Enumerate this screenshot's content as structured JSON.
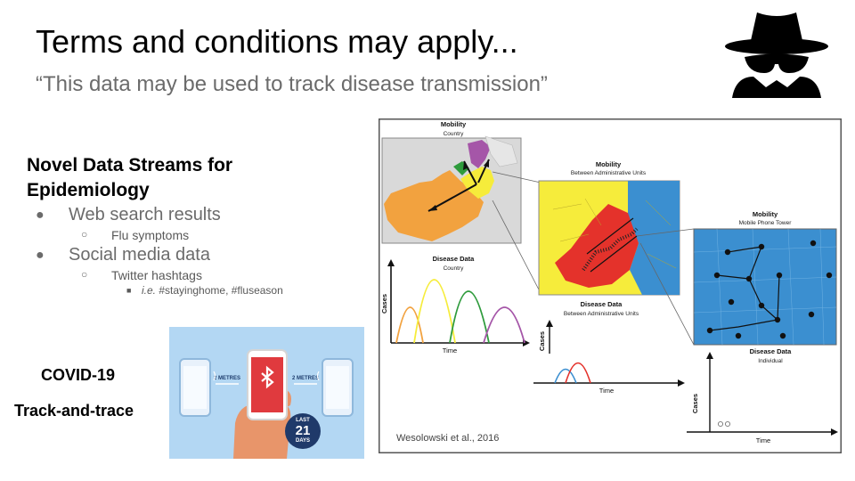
{
  "slide": {
    "title": "Terms and conditions may apply...",
    "subtitle": "“This data may be used to track disease transmission”"
  },
  "left": {
    "heading_line1": "Novel Data Streams for",
    "heading_line2": "Epidemiology",
    "bullets": [
      {
        "label": "Web search results",
        "sub": "Flu symptoms"
      },
      {
        "label": "Social media data",
        "sub": "Twitter hashtags",
        "subsub_prefix": "i.e.",
        "subsub": " #stayinghome, #fluseason"
      }
    ],
    "covid_label": "COVID-19",
    "tracktrace_label": "Track-and-trace"
  },
  "bt_image": {
    "left_distance": "2 METRES",
    "right_distance": "2 METRES",
    "badge_top": "LAST",
    "badge_number": "21",
    "badge_bottom": "DAYS"
  },
  "figure": {
    "panel1": {
      "mobility_title": "Mobility",
      "mobility_sub": "Country",
      "disease_title": "Disease Data",
      "disease_sub": "Country",
      "y_label": "Cases",
      "x_label": "Time"
    },
    "panel2": {
      "mobility_title": "Mobility",
      "mobility_sub": "Between Administrative Units",
      "disease_title": "Disease Data",
      "disease_sub": "Between Administrative Units",
      "y_label": "Cases",
      "x_label": "Time"
    },
    "panel3": {
      "mobility_title": "Mobility",
      "mobility_sub": "Mobile Phone Tower",
      "disease_title": "Disease Data",
      "disease_sub": "Individual",
      "y_label": "Cases",
      "x_label": "Time"
    },
    "citation": "Wesolowski et al., 2016",
    "colors": {
      "orange": "#f2a23f",
      "yellow": "#f6ec3b",
      "green": "#2e9b3c",
      "purple": "#a556a8",
      "red": "#e4322b",
      "blue": "#3b8fd0"
    }
  }
}
